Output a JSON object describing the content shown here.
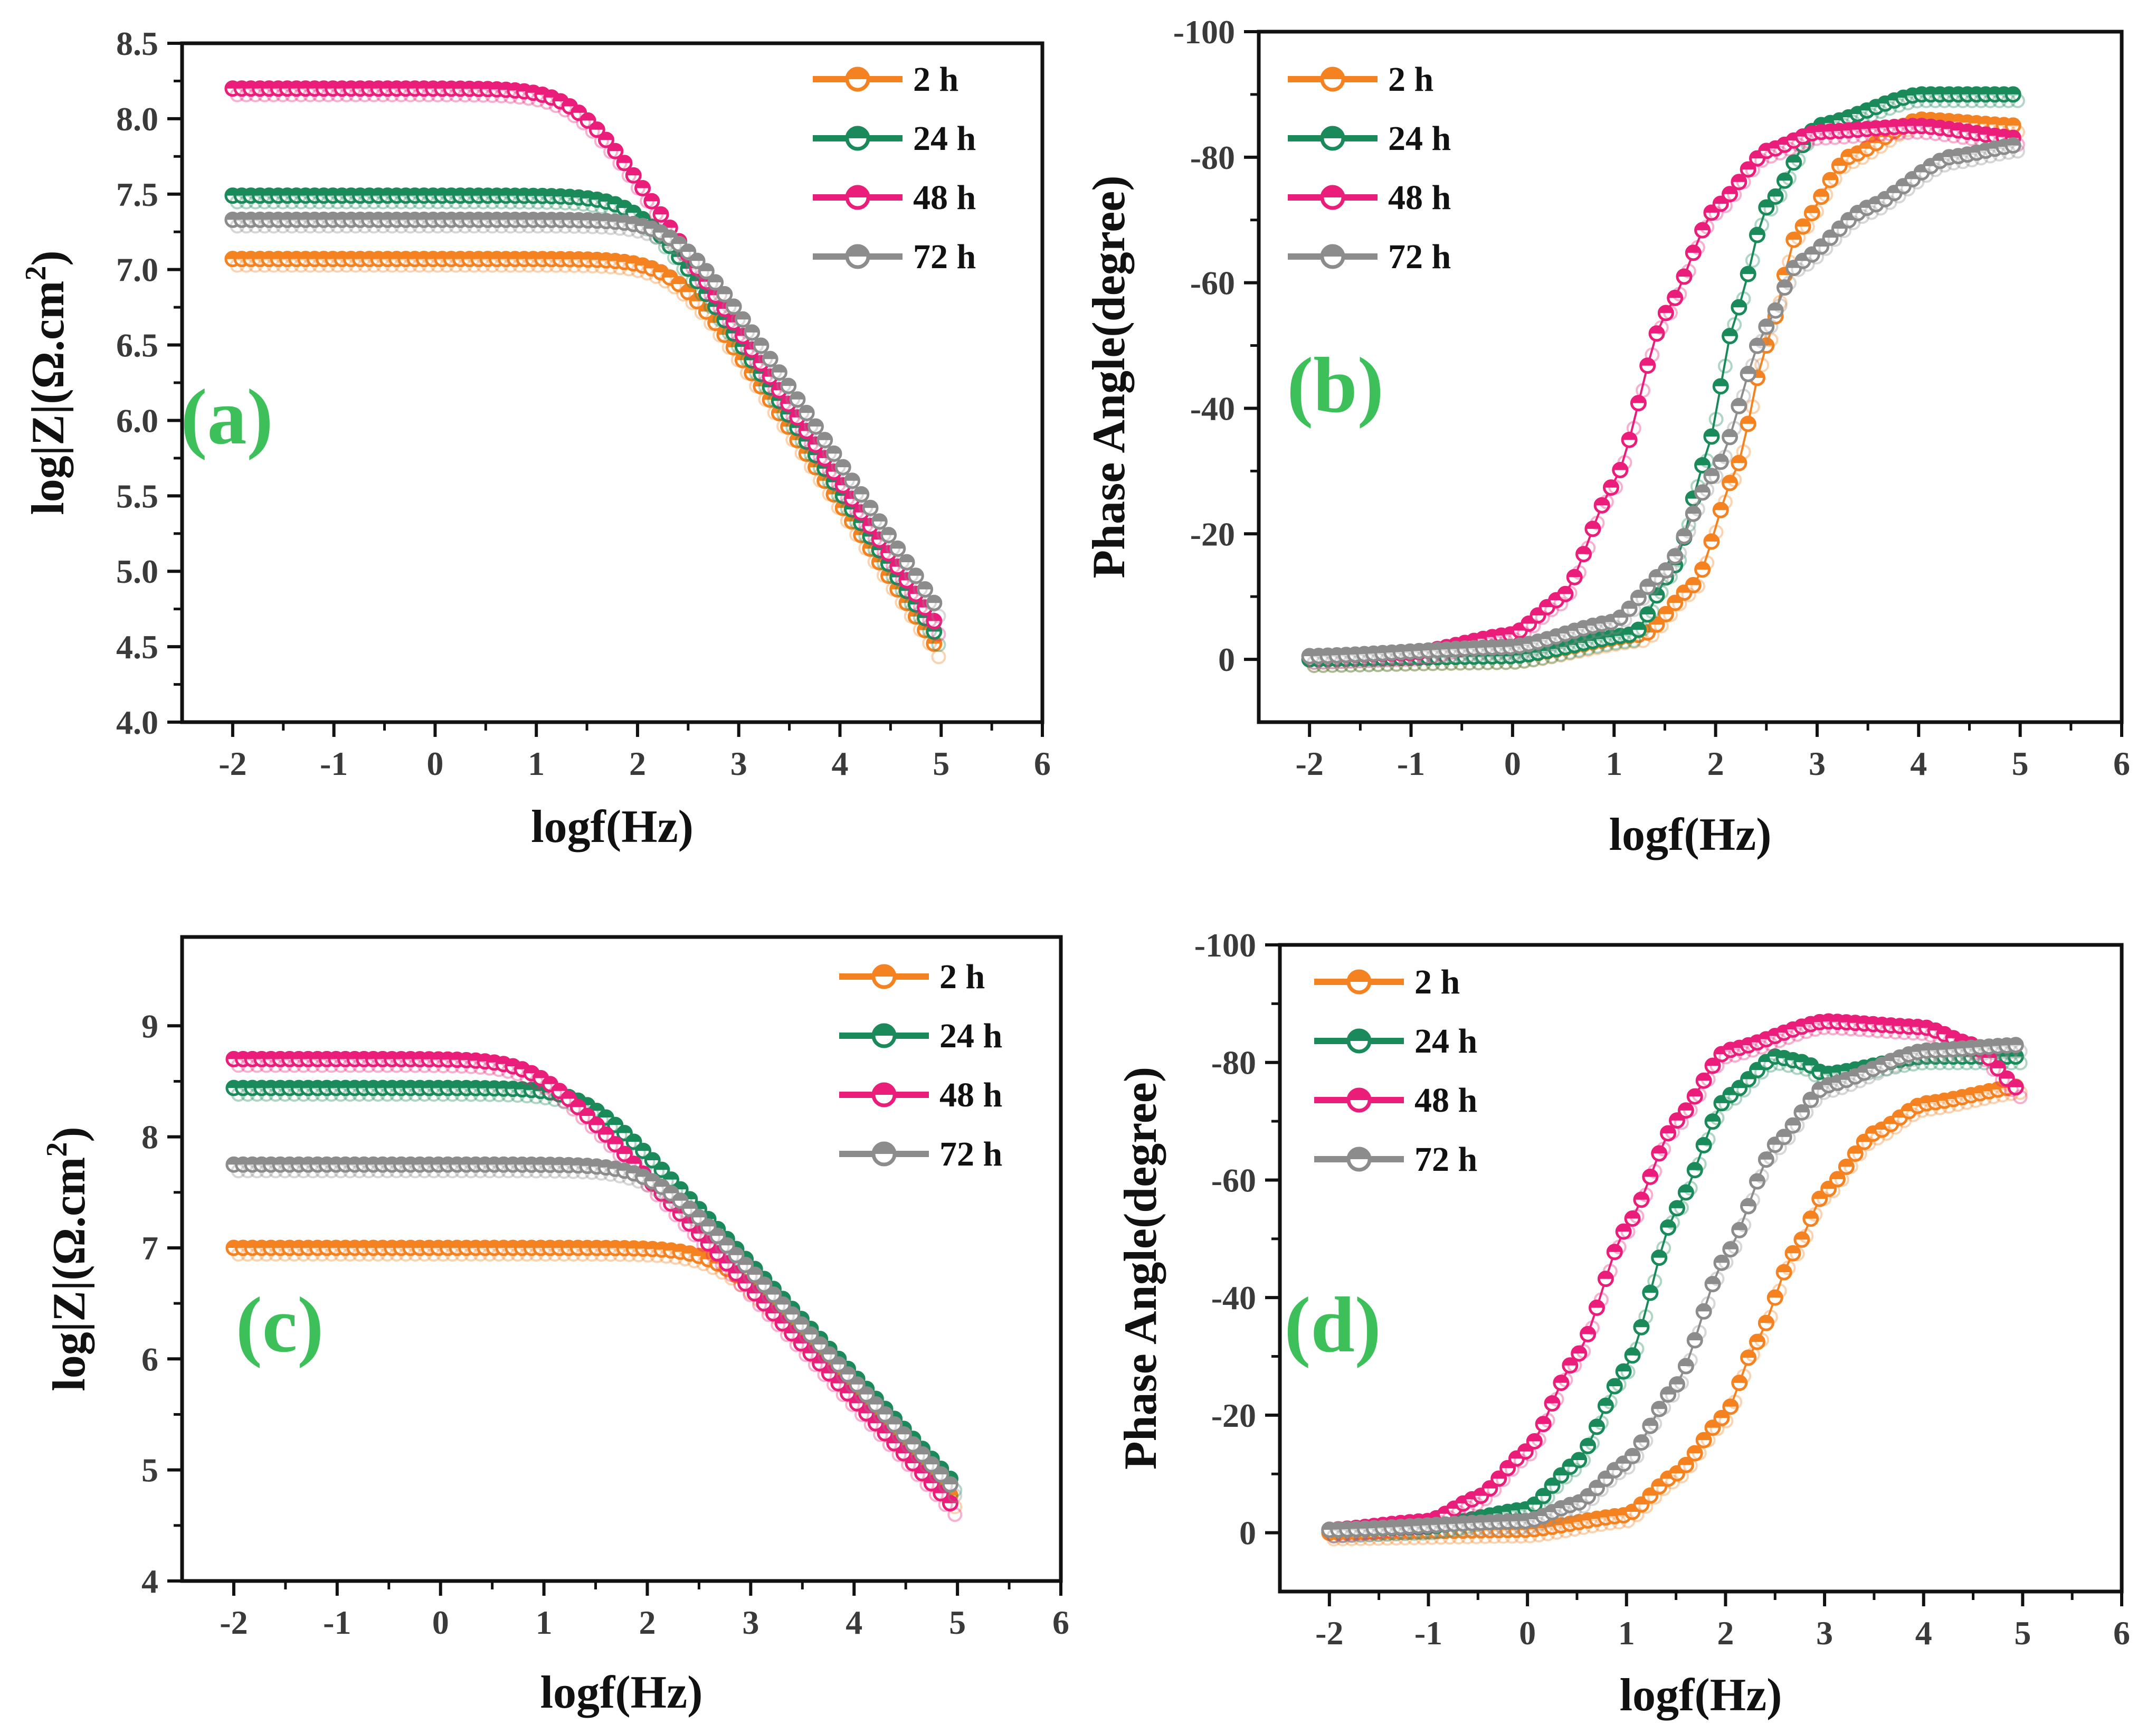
{
  "series_colors": {
    "2 h": "#f58220",
    "24 h": "#1a8a5a",
    "48 h": "#ea1e7a",
    "72 h": "#8c8c8c"
  },
  "chart_data": [
    {
      "panel": "a",
      "type": "line",
      "title": "",
      "label": "(a)",
      "xlabel": "logf(Hz)",
      "ylabel": "log|Z|(Ω.cm²)",
      "ylabel_parts": {
        "main": "log|Z|(Ω.cm",
        "sup": "2",
        "close": ")"
      },
      "xlim": [
        -2.5,
        6
      ],
      "ylim": [
        4.0,
        8.5
      ],
      "xticks": [
        -2,
        -1,
        0,
        1,
        2,
        3,
        4,
        5,
        6
      ],
      "xtick_labels": [
        "-2",
        "-1",
        "0",
        "1",
        "2",
        "3",
        "4",
        "5",
        "6"
      ],
      "yticks": [
        4.0,
        4.5,
        5.0,
        5.5,
        6.0,
        6.5,
        7.0,
        7.5,
        8.0,
        8.5
      ],
      "ytick_labels": [
        "4.0",
        "4.5",
        "5.0",
        "5.5",
        "6.0",
        "6.5",
        "7.0",
        "7.5",
        "8.0",
        "8.5"
      ],
      "legend": [
        "2 h",
        "24 h",
        "48 h",
        "72 h"
      ],
      "legend_position": "top-right",
      "series": [
        {
          "name": "2 h",
          "model": "bode",
          "R": 7.07,
          "ends": 4.45,
          "f_break": 1.5
        },
        {
          "name": "24 h",
          "model": "bode",
          "R": 7.49,
          "ends": 4.53,
          "f_break": 1.9
        },
        {
          "name": "48 h",
          "model": "bode",
          "R": 8.2,
          "ends": 4.6,
          "f_break": 1.2
        },
        {
          "name": "72 h",
          "model": "bode",
          "R": 7.33,
          "ends": 4.72,
          "f_break": 1.9
        }
      ]
    },
    {
      "panel": "b",
      "type": "line",
      "title": "",
      "label": "(b)",
      "xlabel": "logf(Hz)",
      "ylabel": "Phase Angle(degree)",
      "xlim": [
        -2.5,
        6
      ],
      "ylim": [
        10,
        -100
      ],
      "xticks": [
        -2,
        -1,
        0,
        1,
        2,
        3,
        4,
        5,
        6
      ],
      "xtick_labels": [
        "-2",
        "-1",
        "0",
        "1",
        "2",
        "3",
        "4",
        "5",
        "6"
      ],
      "yticks": [
        0,
        -20,
        -40,
        -60,
        -80,
        -100
      ],
      "ytick_labels": [
        "0",
        "-20",
        "-40",
        "-60",
        "-80",
        "-100"
      ],
      "legend": [
        "2 h",
        "24 h",
        "48 h",
        "72 h"
      ],
      "legend_position": "top-left",
      "series": [
        {
          "name": "2 h",
          "model": "phase",
          "points": [
            [
              -2,
              0
            ],
            [
              0,
              -0.5
            ],
            [
              1.3,
              -4
            ],
            [
              1.8,
              -12
            ],
            [
              2.2,
              -30
            ],
            [
              2.5,
              -50
            ],
            [
              2.8,
              -68
            ],
            [
              3.3,
              -80
            ],
            [
              4,
              -86
            ],
            [
              5,
              -85
            ]
          ]
        },
        {
          "name": "24 h",
          "model": "phase",
          "points": [
            [
              -2,
              0
            ],
            [
              0,
              -0.5
            ],
            [
              1.2,
              -4
            ],
            [
              1.6,
              -15
            ],
            [
              1.9,
              -32
            ],
            [
              2.2,
              -55
            ],
            [
              2.5,
              -72
            ],
            [
              3,
              -85
            ],
            [
              4,
              -90
            ],
            [
              5,
              -90
            ]
          ]
        },
        {
          "name": "48 h",
          "model": "phase",
          "points": [
            [
              -2,
              -0.5
            ],
            [
              -1,
              -1
            ],
            [
              0,
              -4
            ],
            [
              0.5,
              -10
            ],
            [
              1,
              -28
            ],
            [
              1.5,
              -55
            ],
            [
              2,
              -72
            ],
            [
              2.5,
              -81
            ],
            [
              3,
              -84
            ],
            [
              4,
              -85
            ],
            [
              5,
              -83
            ]
          ]
        },
        {
          "name": "72 h",
          "model": "phase",
          "points": [
            [
              -2,
              -0.5
            ],
            [
              0,
              -2
            ],
            [
              1,
              -6
            ],
            [
              1.5,
              -14
            ],
            [
              2,
              -30
            ],
            [
              2.5,
              -53
            ],
            [
              2.8,
              -63
            ],
            [
              3.5,
              -72
            ],
            [
              4.3,
              -80
            ],
            [
              5,
              -82
            ]
          ]
        }
      ]
    },
    {
      "panel": "c",
      "type": "line",
      "title": "",
      "label": "(c)",
      "xlabel": "logf(Hz)",
      "ylabel": "log|Z|(Ω.cm²)",
      "ylabel_parts": {
        "main": "log|Z|(Ω.cm",
        "sup": "2",
        "close": ")"
      },
      "xlim": [
        -2.5,
        6
      ],
      "ylim": [
        4,
        9.8
      ],
      "xticks": [
        -2,
        -1,
        0,
        1,
        2,
        3,
        4,
        5,
        6
      ],
      "xtick_labels": [
        "-2",
        "-1",
        "0",
        "1",
        "2",
        "3",
        "4",
        "5",
        "6"
      ],
      "yticks": [
        4,
        5,
        6,
        7,
        8,
        9
      ],
      "ytick_labels": [
        "4",
        "5",
        "6",
        "7",
        "8",
        "9"
      ],
      "legend": [
        "2 h",
        "24 h",
        "48 h",
        "72 h"
      ],
      "legend_position": "top-right",
      "series": [
        {
          "name": "2 h",
          "model": "bode",
          "R": 7.0,
          "ends": 4.7,
          "f_break": 2.2
        },
        {
          "name": "24 h",
          "model": "bode",
          "R": 8.44,
          "ends": 4.85,
          "f_break": 1.5
        },
        {
          "name": "48 h",
          "model": "bode",
          "R": 8.7,
          "ends": 4.63,
          "f_break": 1.0
        },
        {
          "name": "72 h",
          "model": "bode",
          "R": 7.75,
          "ends": 4.8,
          "f_break": 2.1
        }
      ]
    },
    {
      "panel": "d",
      "type": "line",
      "title": "",
      "label": "(d)",
      "xlabel": "logf(Hz)",
      "ylabel": "Phase Angle(degree)",
      "xlim": [
        -2.5,
        6
      ],
      "ylim": [
        10,
        -100
      ],
      "xticks": [
        -2,
        -1,
        0,
        1,
        2,
        3,
        4,
        5,
        6
      ],
      "xtick_labels": [
        "-2",
        "-1",
        "0",
        "1",
        "2",
        "3",
        "4",
        "5",
        "6"
      ],
      "yticks": [
        0,
        -20,
        -40,
        -60,
        -80,
        -100
      ],
      "ytick_labels": [
        "0",
        "-20",
        "-40",
        "-60",
        "-80",
        "-100"
      ],
      "legend": [
        "2 h",
        "24 h",
        "48 h",
        "72 h"
      ],
      "legend_position": "top-left",
      "series": [
        {
          "name": "2 h",
          "model": "phase",
          "points": [
            [
              -2,
              0
            ],
            [
              0,
              -0.5
            ],
            [
              1,
              -3
            ],
            [
              1.5,
              -10
            ],
            [
              2,
              -20
            ],
            [
              2.3,
              -32
            ],
            [
              2.7,
              -48
            ],
            [
              3,
              -58
            ],
            [
              3.5,
              -68
            ],
            [
              4,
              -73
            ],
            [
              5,
              -76
            ]
          ]
        },
        {
          "name": "24 h",
          "model": "phase",
          "points": [
            [
              -2,
              -0.5
            ],
            [
              -1,
              -1
            ],
            [
              0,
              -4
            ],
            [
              0.5,
              -12
            ],
            [
              1,
              -28
            ],
            [
              1.5,
              -55
            ],
            [
              2,
              -74
            ],
            [
              2.5,
              -81
            ],
            [
              2.8,
              -80
            ],
            [
              3,
              -78
            ],
            [
              4,
              -81
            ],
            [
              5,
              -81
            ]
          ]
        },
        {
          "name": "48 h",
          "model": "phase",
          "points": [
            [
              -2,
              -0.5
            ],
            [
              -1,
              -2
            ],
            [
              -0.5,
              -6
            ],
            [
              0,
              -14
            ],
            [
              0.5,
              -30
            ],
            [
              1,
              -52
            ],
            [
              1.5,
              -70
            ],
            [
              2,
              -82
            ],
            [
              3,
              -87
            ],
            [
              4,
              -86
            ],
            [
              4.5,
              -83
            ],
            [
              5,
              -75
            ]
          ]
        },
        {
          "name": "72 h",
          "model": "phase",
          "points": [
            [
              -2,
              -0.5
            ],
            [
              0,
              -2
            ],
            [
              0.5,
              -5
            ],
            [
              1,
              -12
            ],
            [
              1.5,
              -25
            ],
            [
              2,
              -47
            ],
            [
              2.5,
              -66
            ],
            [
              3,
              -76
            ],
            [
              4,
              -82
            ],
            [
              5,
              -83
            ]
          ]
        }
      ]
    }
  ]
}
